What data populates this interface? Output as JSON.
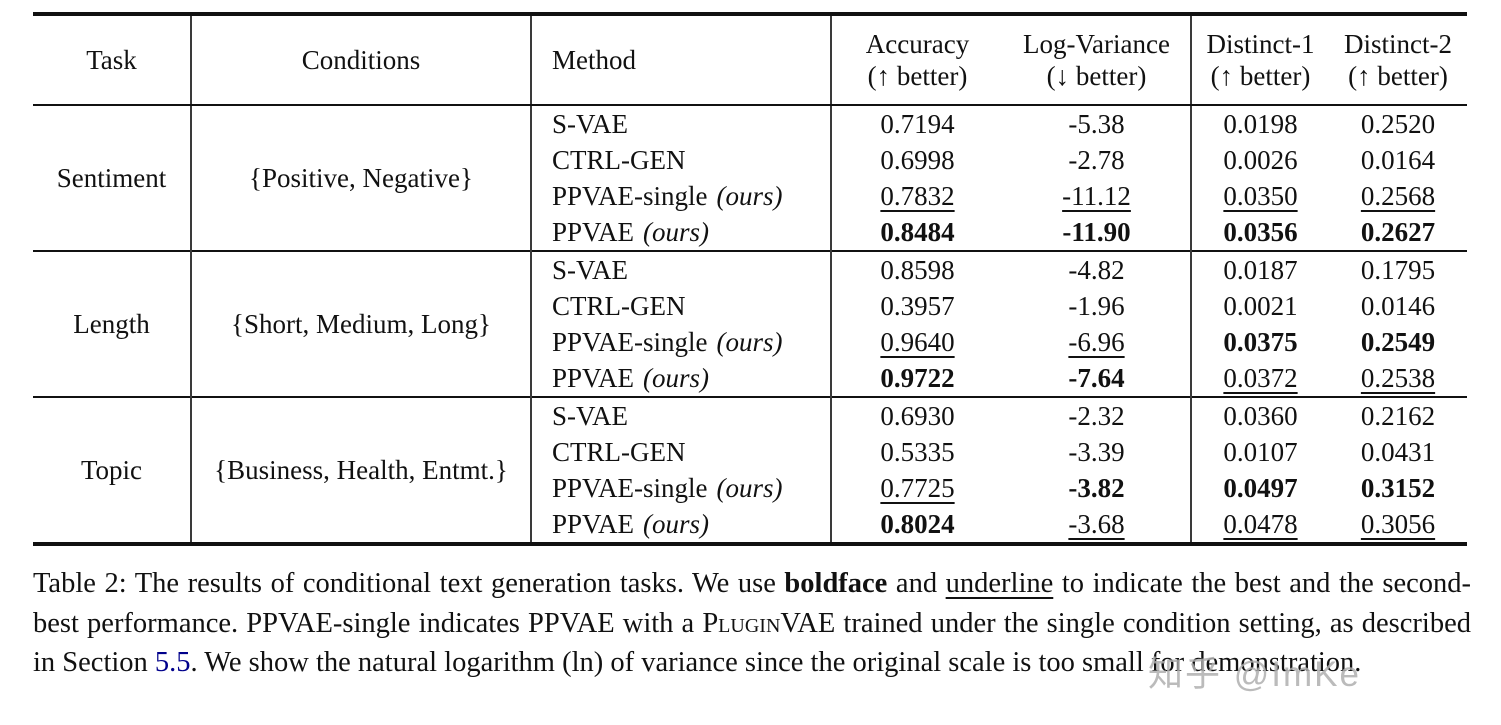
{
  "table": {
    "headers": {
      "task": "Task",
      "conditions": "Conditions",
      "method": "Method",
      "metrics": [
        {
          "name": "Accuracy",
          "better": "(↑ better)"
        },
        {
          "name": "Log-Variance",
          "better": "(↓ better)"
        },
        {
          "name": "Distinct-1",
          "better": "(↑ better)"
        },
        {
          "name": "Distinct-2",
          "better": "(↑ better)"
        }
      ]
    },
    "groups": [
      {
        "task": "Sentiment",
        "conditions": "{Positive, Negative}",
        "rows": [
          {
            "method": "S-VAE",
            "suffix": "",
            "values": [
              "0.7194",
              "-5.38",
              "0.0198",
              "0.2520"
            ],
            "styles": [
              "n",
              "n",
              "n",
              "n"
            ]
          },
          {
            "method": "CTRL-GEN",
            "suffix": "",
            "values": [
              "0.6998",
              "-2.78",
              "0.0026",
              "0.0164"
            ],
            "styles": [
              "n",
              "n",
              "n",
              "n"
            ]
          },
          {
            "method": "PPVAE-single",
            "suffix": "(ours)",
            "values": [
              "0.7832",
              "-11.12",
              "0.0350",
              "0.2568"
            ],
            "styles": [
              "u",
              "u",
              "u",
              "u"
            ]
          },
          {
            "method": "PPVAE",
            "suffix": "(ours)",
            "values": [
              "0.8484",
              "-11.90",
              "0.0356",
              "0.2627"
            ],
            "styles": [
              "b",
              "b",
              "b",
              "b"
            ]
          }
        ]
      },
      {
        "task": "Length",
        "conditions": "{Short, Medium, Long}",
        "rows": [
          {
            "method": "S-VAE",
            "suffix": "",
            "values": [
              "0.8598",
              "-4.82",
              "0.0187",
              "0.1795"
            ],
            "styles": [
              "n",
              "n",
              "n",
              "n"
            ]
          },
          {
            "method": "CTRL-GEN",
            "suffix": "",
            "values": [
              "0.3957",
              "-1.96",
              "0.0021",
              "0.0146"
            ],
            "styles": [
              "n",
              "n",
              "n",
              "n"
            ]
          },
          {
            "method": "PPVAE-single",
            "suffix": "(ours)",
            "values": [
              "0.9640",
              "-6.96",
              "0.0375",
              "0.2549"
            ],
            "styles": [
              "u",
              "u",
              "b",
              "b"
            ]
          },
          {
            "method": "PPVAE",
            "suffix": "(ours)",
            "values": [
              "0.9722",
              "-7.64",
              "0.0372",
              "0.2538"
            ],
            "styles": [
              "b",
              "b",
              "u",
              "u"
            ]
          }
        ]
      },
      {
        "task": "Topic",
        "conditions": "{Business, Health, Entmt.}",
        "rows": [
          {
            "method": "S-VAE",
            "suffix": "",
            "values": [
              "0.6930",
              "-2.32",
              "0.0360",
              "0.2162"
            ],
            "styles": [
              "n",
              "n",
              "n",
              "n"
            ]
          },
          {
            "method": "CTRL-GEN",
            "suffix": "",
            "values": [
              "0.5335",
              "-3.39",
              "0.0107",
              "0.0431"
            ],
            "styles": [
              "n",
              "n",
              "n",
              "n"
            ]
          },
          {
            "method": "PPVAE-single",
            "suffix": "(ours)",
            "values": [
              "0.7725",
              "-3.82",
              "0.0497",
              "0.3152"
            ],
            "styles": [
              "u",
              "b",
              "b",
              "b"
            ]
          },
          {
            "method": "PPVAE",
            "suffix": "(ours)",
            "values": [
              "0.8024",
              "-3.68",
              "0.0478",
              "0.3056"
            ],
            "styles": [
              "b",
              "u",
              "u",
              "u"
            ]
          }
        ]
      }
    ]
  },
  "caption": {
    "label": "Table 2:",
    "part1": " The results of conditional text generation tasks. We use ",
    "bold_word": "boldface",
    "part2": " and ",
    "underline_word": "underline",
    "part3": " to indicate the best and the second-best performance. PPVAE-single indicates PPVAE with a ",
    "smallcaps_word": "Plugin",
    "smallcaps_suffix": "VAE",
    "part4": " trained under the single condition setting, as described in Section ",
    "section_link": "5.5",
    "part5": ". We show the natural logarithm (ln) of variance since the original scale is too small for demonstration."
  },
  "watermark": "知乎 @ImKe"
}
